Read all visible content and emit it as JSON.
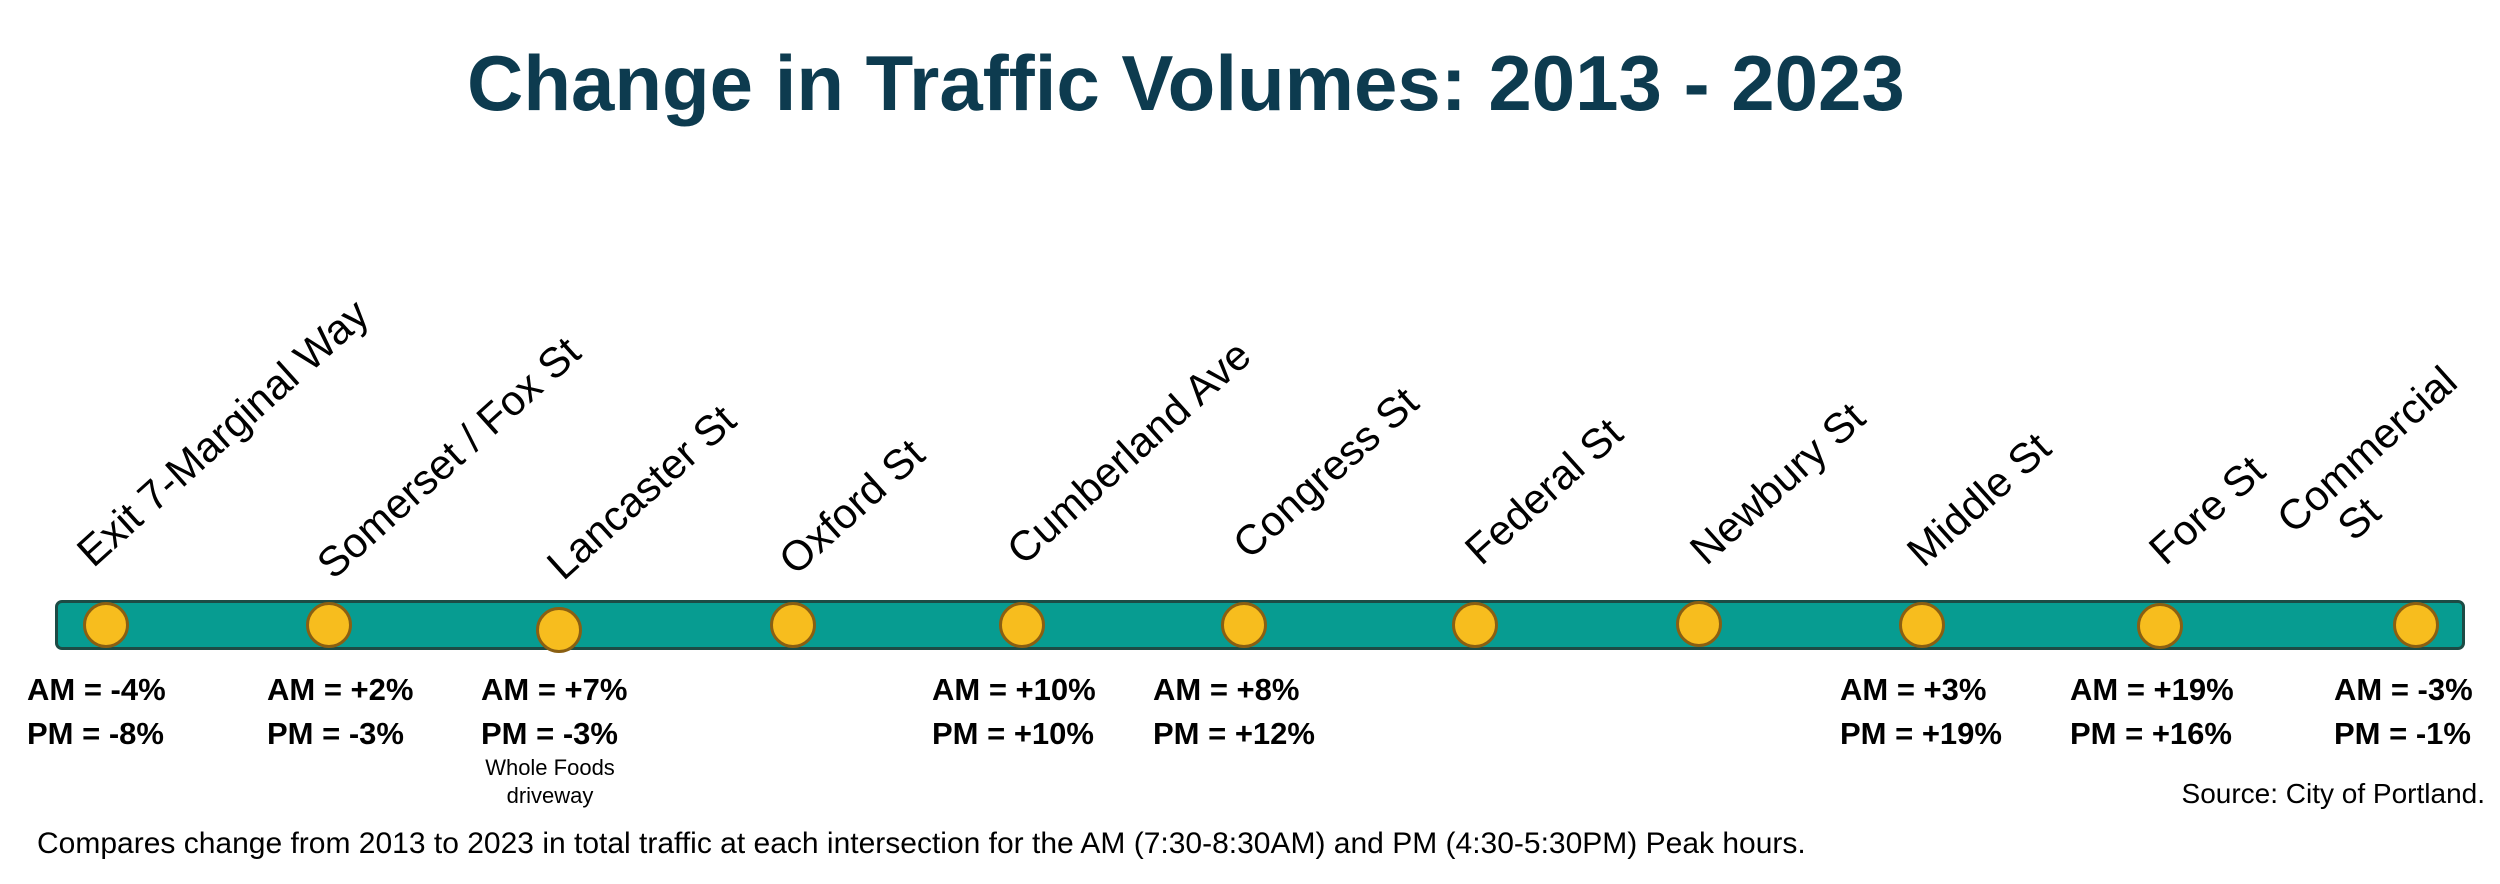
{
  "title": "Change in Traffic Volumes: 2013 - 2023",
  "intersections": [
    {
      "name": "Exit 7-Marginal Way",
      "am": "AM = -4%",
      "pm": "PM = -8%"
    },
    {
      "name": "Somerset / Fox St",
      "am": "AM = +2%",
      "pm": "PM = -3%"
    },
    {
      "name": "Lancaster St",
      "am": "AM = +7%",
      "pm": "PM = -3%",
      "note": "Whole Foods driveway"
    },
    {
      "name": "Oxford St"
    },
    {
      "name": "Cumberland Ave",
      "am": "AM = +10%",
      "pm": "PM = +10%"
    },
    {
      "name": "Congress St",
      "am": "AM = +8%",
      "pm": "PM = +12%"
    },
    {
      "name": "Federal St"
    },
    {
      "name": "Newbury St"
    },
    {
      "name": "Middle St",
      "am": "AM = +3%",
      "pm": "PM = +19%"
    },
    {
      "name": "Fore St",
      "am": "AM = +19%",
      "pm": "PM = +16%"
    },
    {
      "name_line1": "Commercial",
      "name_line2": "St",
      "am": "AM = -3%",
      "pm": "PM = -1%"
    }
  ],
  "source": "Source: City of Portland.",
  "caption": "Compares change from 2013 to 2023 in total traffic at each intersection for the AM (7:30-8:30AM) and PM (4:30-5:30PM) Peak hours.",
  "colors": {
    "title": "#0d3b4f",
    "bar": "#079c91",
    "node": "#f7bd1e"
  }
}
